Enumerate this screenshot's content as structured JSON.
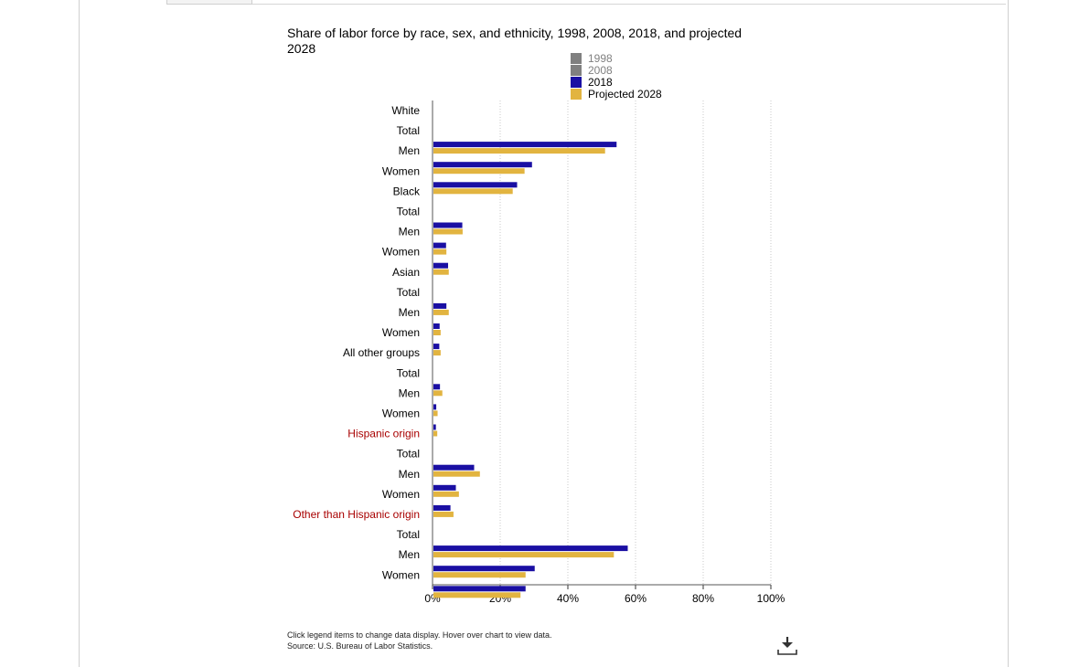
{
  "chart_data": {
    "type": "bar",
    "orientation": "horizontal",
    "title": "Share of labor force by race, sex, and ethnicity, 1998, 2008, 2018, and projected 2028",
    "legend": {
      "placement": "top-right",
      "items": [
        {
          "name": "1998",
          "color": "#808080",
          "active": false
        },
        {
          "name": "2008",
          "color": "#808080",
          "active": false
        },
        {
          "name": "2018",
          "color": "#1a0fa3",
          "active": true
        },
        {
          "name": "Projected 2028",
          "color": "#e2b440",
          "active": true
        }
      ]
    },
    "xlim": [
      0,
      100
    ],
    "x_ticks": [
      "0%",
      "20%",
      "40%",
      "60%",
      "80%",
      "100%"
    ],
    "grid": true,
    "categories": [
      {
        "label": "White",
        "group": true,
        "highlight": false
      },
      {
        "label": "Total"
      },
      {
        "label": "Men"
      },
      {
        "label": "Women"
      },
      {
        "label": "Black",
        "group": true,
        "highlight": false
      },
      {
        "label": "Total"
      },
      {
        "label": "Men"
      },
      {
        "label": "Women"
      },
      {
        "label": "Asian",
        "group": true,
        "highlight": false
      },
      {
        "label": "Total"
      },
      {
        "label": "Men"
      },
      {
        "label": "Women"
      },
      {
        "label": "All other groups",
        "group": true,
        "highlight": false
      },
      {
        "label": "Total"
      },
      {
        "label": "Men"
      },
      {
        "label": "Women"
      },
      {
        "label": "Hispanic origin",
        "group": true,
        "highlight": true
      },
      {
        "label": "Total"
      },
      {
        "label": "Men"
      },
      {
        "label": "Women"
      },
      {
        "label": "Other than Hispanic origin",
        "group": true,
        "highlight": true
      },
      {
        "label": "Total"
      },
      {
        "label": "Men"
      },
      {
        "label": "Women"
      }
    ],
    "series": [
      {
        "name": "2018",
        "color": "#1a0fa3",
        "values": [
          null,
          54.4,
          29.4,
          25.0,
          null,
          8.8,
          4.0,
          4.6,
          null,
          4.1,
          2.1,
          2.0,
          null,
          2.2,
          1.1,
          1.0,
          null,
          12.3,
          6.9,
          5.3,
          null,
          57.7,
          30.2,
          27.5
        ]
      },
      {
        "name": "Projected 2028",
        "color": "#e2b440",
        "values": [
          null,
          51.0,
          27.2,
          23.7,
          null,
          8.9,
          4.1,
          4.8,
          null,
          4.8,
          2.4,
          2.4,
          null,
          2.9,
          1.5,
          1.4,
          null,
          14.0,
          7.8,
          6.2,
          null,
          53.6,
          27.5,
          26.0
        ]
      }
    ]
  },
  "footer": {
    "note_line1": "Click legend items to change data display. Hover over chart to view data.",
    "note_line2": "Source: U.S. Bureau of Labor Statistics."
  },
  "icons": {
    "download": "download-icon"
  }
}
